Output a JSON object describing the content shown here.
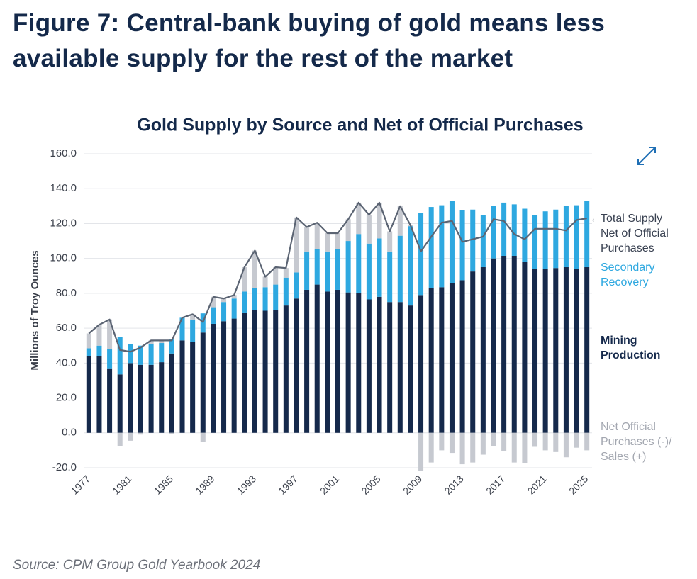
{
  "header": {
    "title": "Figure 7: Central-bank buying of gold means less available supply for the rest of the market"
  },
  "chart_data": {
    "type": "bar",
    "stacked": true,
    "title": "Gold Supply by Source and Net of Official Purchases",
    "y_label": "Millions of Troy Ounces",
    "categories": [
      "1977",
      null,
      null,
      null,
      "1981",
      null,
      null,
      null,
      "1985",
      null,
      null,
      null,
      "1989",
      null,
      null,
      null,
      "1993",
      null,
      null,
      null,
      "1997",
      null,
      null,
      null,
      "2001",
      null,
      null,
      null,
      "2005",
      null,
      null,
      null,
      "2009",
      null,
      null,
      null,
      "2013",
      null,
      null,
      null,
      "2017",
      null,
      null,
      null,
      "2021",
      null,
      null,
      null,
      "2025"
    ],
    "ylim": [
      -20,
      160
    ],
    "yticks": [
      {
        "value": -20,
        "label": "-20.0"
      },
      {
        "value": 0,
        "label": "0.0"
      },
      {
        "value": 20,
        "label": "20.0"
      },
      {
        "value": 40,
        "label": "40.0"
      },
      {
        "value": 60,
        "label": "60.0"
      },
      {
        "value": 80,
        "label": "80.0"
      },
      {
        "value": 100,
        "label": "100.0"
      },
      {
        "value": 120,
        "label": "120.0"
      },
      {
        "value": 140,
        "label": "140.0"
      },
      {
        "value": 160,
        "label": "160.0"
      }
    ],
    "grid": true,
    "series": [
      {
        "name": "Mining Production",
        "color": "#15294b",
        "values": [
          44,
          44,
          37,
          33.5,
          40,
          39,
          39,
          40.5,
          45.5,
          53,
          52,
          57.5,
          62.5,
          64,
          65.5,
          69,
          70.5,
          70,
          70.5,
          73,
          77,
          82,
          85,
          81,
          82,
          80.5,
          80,
          76.5,
          78,
          75,
          75,
          73,
          79,
          83,
          83.5,
          86,
          87.5,
          92.5,
          95,
          100,
          101.5,
          101.5,
          98,
          94,
          94,
          94.5,
          95,
          94,
          95
        ]
      },
      {
        "name": "Secondary Recovery",
        "color": "#2ea8e0",
        "values": [
          4.5,
          6,
          11,
          21.5,
          11,
          11,
          12,
          11,
          8,
          13,
          13,
          11,
          9.5,
          11,
          11.5,
          12,
          12.5,
          13.5,
          14.5,
          16,
          15,
          22,
          20.5,
          23,
          23.5,
          29.5,
          34,
          32,
          33.5,
          29,
          38,
          45.5,
          47,
          46.5,
          47,
          47,
          40,
          35.5,
          30,
          30,
          30.5,
          29.5,
          30.5,
          31,
          33,
          33.5,
          35,
          36.5,
          38
        ]
      },
      {
        "name": "Net Official Purchases (-)/ Sales (+)",
        "color": "#c6c9d0",
        "values": [
          8.5,
          12,
          17,
          -7.5,
          -4.5,
          -1,
          2,
          1.5,
          -0.5,
          0,
          3,
          -5,
          6,
          2,
          2,
          14,
          21.5,
          6,
          10,
          5.5,
          31.5,
          14,
          15,
          10.5,
          9,
          12.5,
          18,
          16.5,
          20.5,
          11.5,
          17,
          0.5,
          -22,
          -17,
          -10,
          -11.5,
          -18,
          -17,
          -12.5,
          -7.5,
          -10.5,
          -17,
          -17.5,
          -8,
          -10,
          -11,
          -14,
          -8.5,
          -10
        ]
      },
      {
        "name": "Total Supply Net of Official Purchases",
        "type": "line",
        "color": "#5b6473",
        "values": [
          57,
          62,
          65,
          47.5,
          46.5,
          49,
          53,
          53,
          53,
          66,
          68,
          63.5,
          78,
          77,
          79,
          95,
          104.5,
          89.5,
          95,
          94.5,
          123.5,
          118,
          120.5,
          114.5,
          114.5,
          122.5,
          132,
          125,
          132,
          115.5,
          130,
          119,
          104,
          112.5,
          120.5,
          121.5,
          109.5,
          111,
          112.5,
          122.5,
          121.5,
          114,
          111,
          117,
          117,
          117,
          116,
          122,
          123
        ]
      }
    ]
  },
  "footer": {
    "source": "Source: CPM Group Gold Yearbook 2024"
  }
}
